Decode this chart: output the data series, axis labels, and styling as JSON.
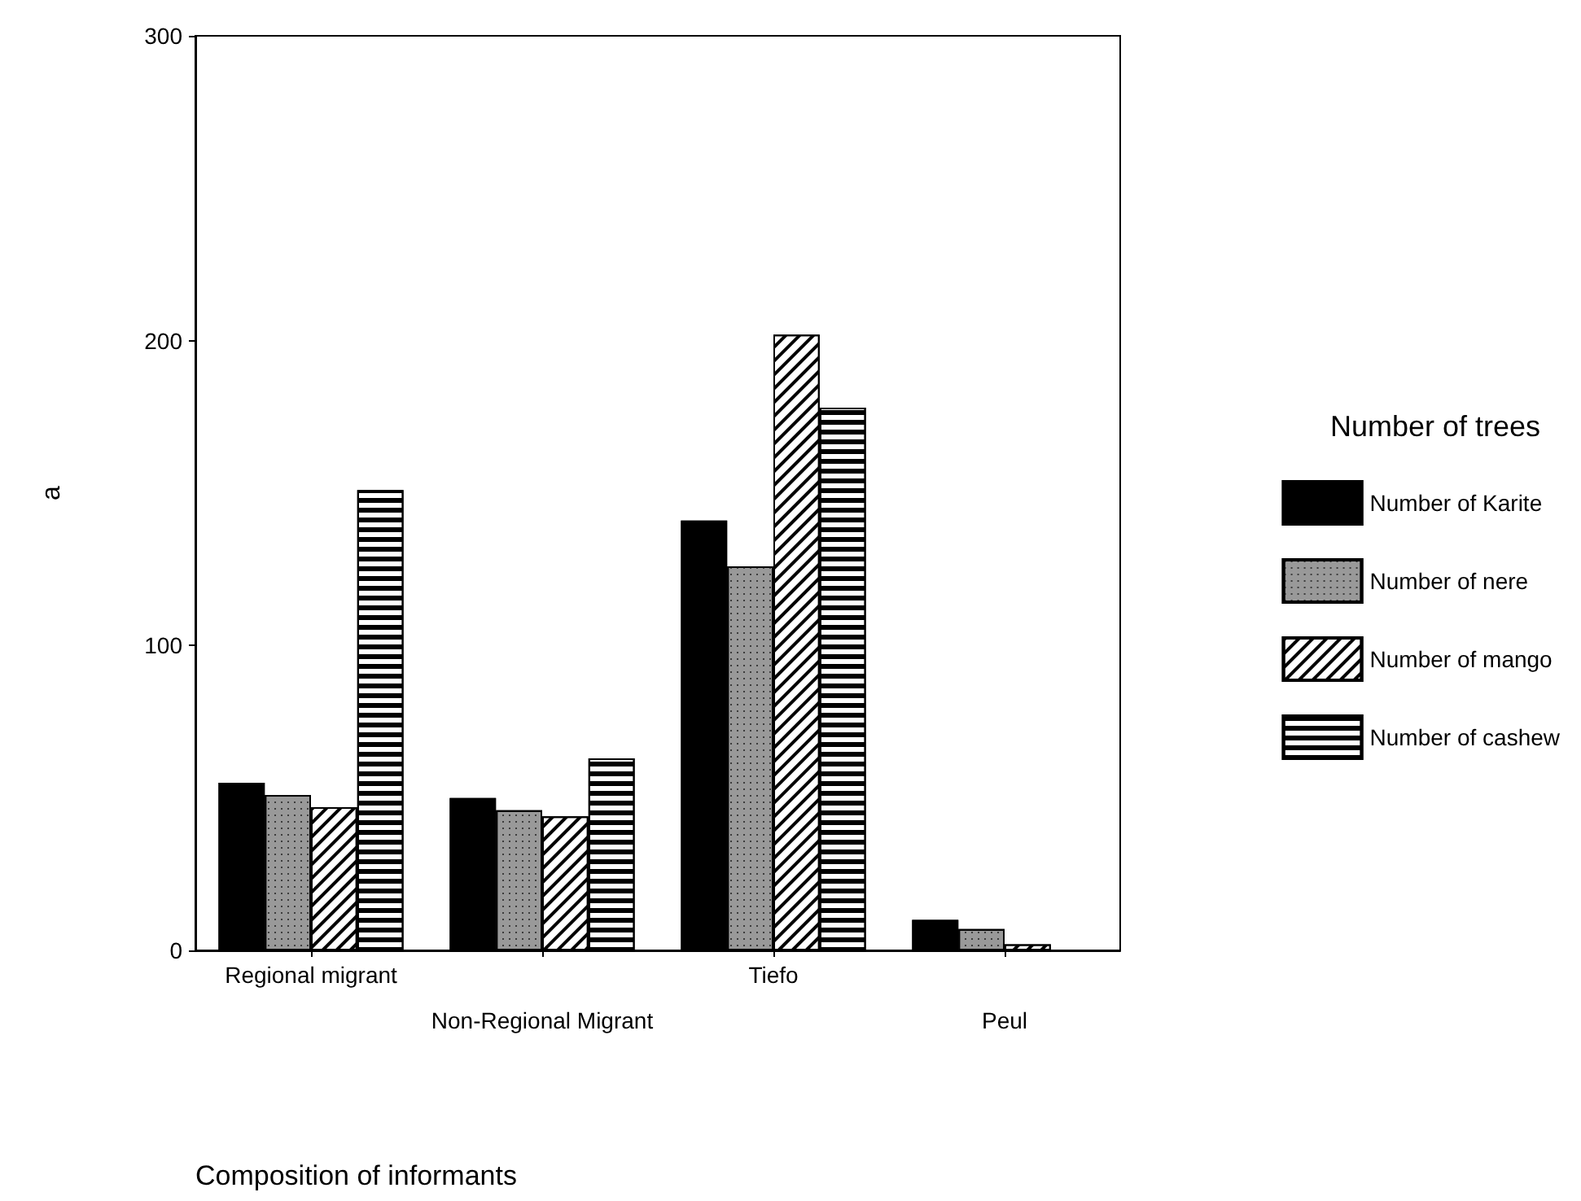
{
  "chart_data": {
    "type": "bar",
    "xlabel": "Composition of informants",
    "ylabel": "a",
    "legend_title": "Number of trees",
    "categories": [
      "Regional migrant",
      "Non-Regional Migrant",
      "Tiefo",
      "Peul"
    ],
    "series": [
      {
        "name": "Number of Karite",
        "color": "#000000",
        "values": [
          55,
          50,
          141,
          10
        ]
      },
      {
        "name": "Number of nere",
        "color": "#999999",
        "values": [
          51,
          46,
          126,
          7
        ]
      },
      {
        "name": "Number of mango",
        "color": "#ffffff",
        "values": [
          47,
          44,
          202,
          2
        ]
      },
      {
        "name": "Number of cashew",
        "color": "#ffffff",
        "values": [
          151,
          63,
          178,
          null
        ]
      }
    ],
    "ylim": [
      0,
      300
    ],
    "yticks": [
      0,
      100,
      200,
      300
    ],
    "grid": false,
    "legend": "right"
  }
}
